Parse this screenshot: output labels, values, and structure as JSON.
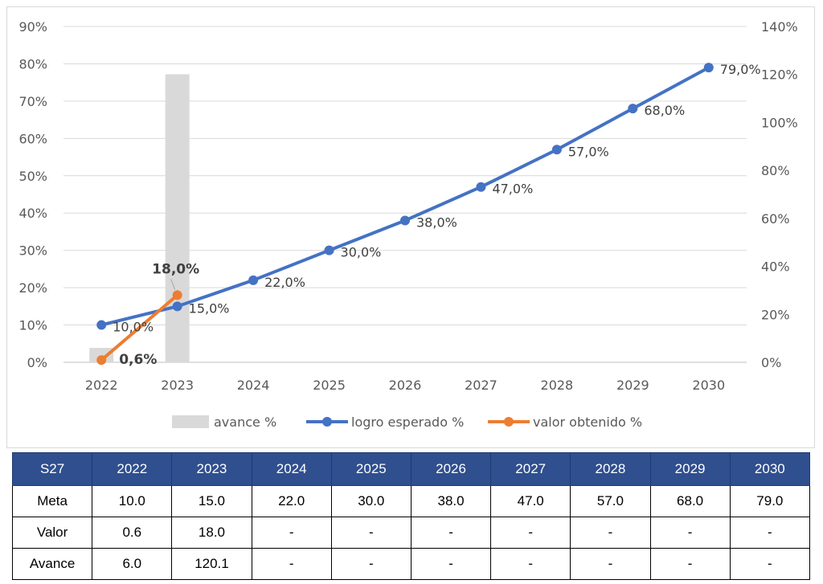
{
  "chart_data": {
    "type": "combo",
    "categories": [
      "2022",
      "2023",
      "2024",
      "2025",
      "2026",
      "2027",
      "2028",
      "2029",
      "2030"
    ],
    "y_left": {
      "min": 0,
      "max": 90,
      "step": 10,
      "tick_format": "%"
    },
    "y_right": {
      "min": 0,
      "max": 140,
      "step": 20,
      "tick_format": "%"
    },
    "series": [
      {
        "name": "avance %",
        "type": "bar",
        "axis": "right",
        "color": "#d9d9d9",
        "values": [
          6.0,
          120.1,
          null,
          null,
          null,
          null,
          null,
          null,
          null
        ]
      },
      {
        "name": "logro esperado %",
        "type": "line",
        "axis": "left",
        "color": "#4472c4",
        "values": [
          10,
          15,
          22,
          30,
          38,
          47,
          57,
          68,
          79
        ],
        "labels": [
          "10,0%",
          "15,0%",
          "22,0%",
          "30,0%",
          "38,0%",
          "47,0%",
          "57,0%",
          "68,0%",
          "79,0%"
        ]
      },
      {
        "name": "valor obtenido %",
        "type": "line",
        "axis": "left",
        "color": "#ed7d31",
        "values": [
          0.6,
          18.0,
          null,
          null,
          null,
          null,
          null,
          null,
          null
        ],
        "labels": [
          "0,6%",
          "18,0%"
        ]
      }
    ],
    "legend_position": "bottom",
    "grid": true
  },
  "table": {
    "headers": [
      "S27",
      "2022",
      "2023",
      "2024",
      "2025",
      "2026",
      "2027",
      "2028",
      "2029",
      "2030"
    ],
    "rows": [
      {
        "label": "Meta",
        "cells": [
          "10.0",
          "15.0",
          "22.0",
          "30.0",
          "38.0",
          "47.0",
          "57.0",
          "68.0",
          "79.0"
        ]
      },
      {
        "label": "Valor",
        "cells": [
          "0.6",
          "18.0",
          "-",
          "-",
          "-",
          "-",
          "-",
          "-",
          "-"
        ]
      },
      {
        "label": "Avance",
        "cells": [
          "6.0",
          "120.1",
          "-",
          "-",
          "-",
          "-",
          "-",
          "-",
          "-"
        ]
      }
    ]
  }
}
